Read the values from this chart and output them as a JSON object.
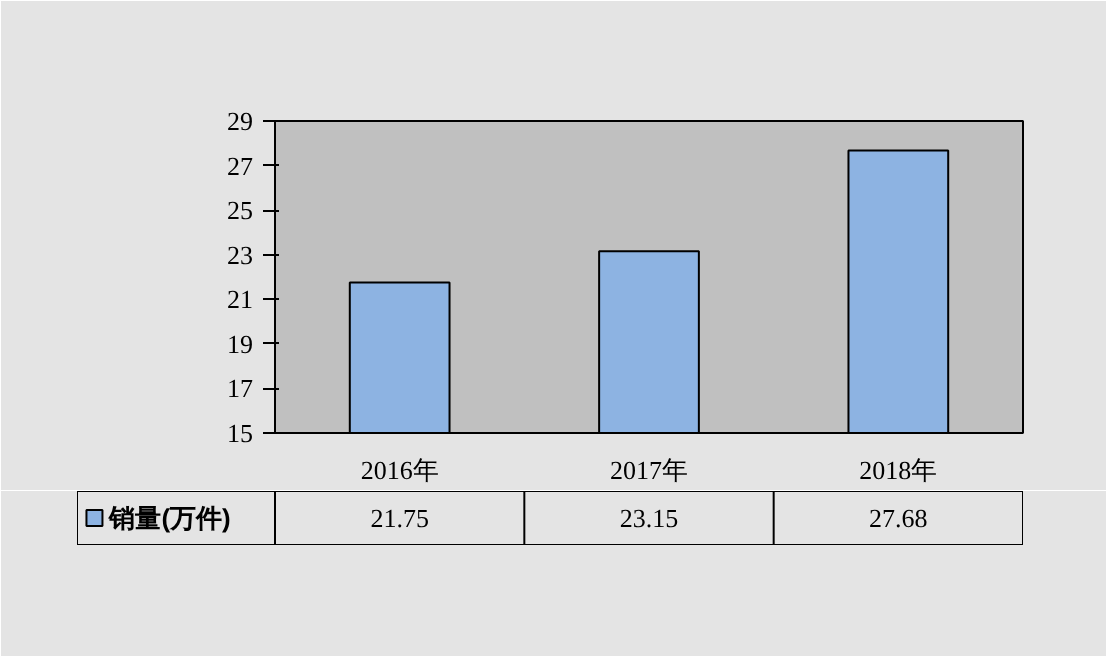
{
  "chart_data": {
    "type": "bar",
    "categories": [
      "2016年",
      "2017年",
      "2018年"
    ],
    "series": [
      {
        "name": "销量(万件)",
        "color": "#8db3e2",
        "values": [
          21.75,
          23.15,
          27.68
        ]
      }
    ],
    "ylim": [
      15,
      29
    ],
    "yticks": [
      15,
      17,
      19,
      21,
      23,
      25,
      27,
      29
    ],
    "grid": false,
    "legend": "bottom",
    "data_labels": true
  }
}
